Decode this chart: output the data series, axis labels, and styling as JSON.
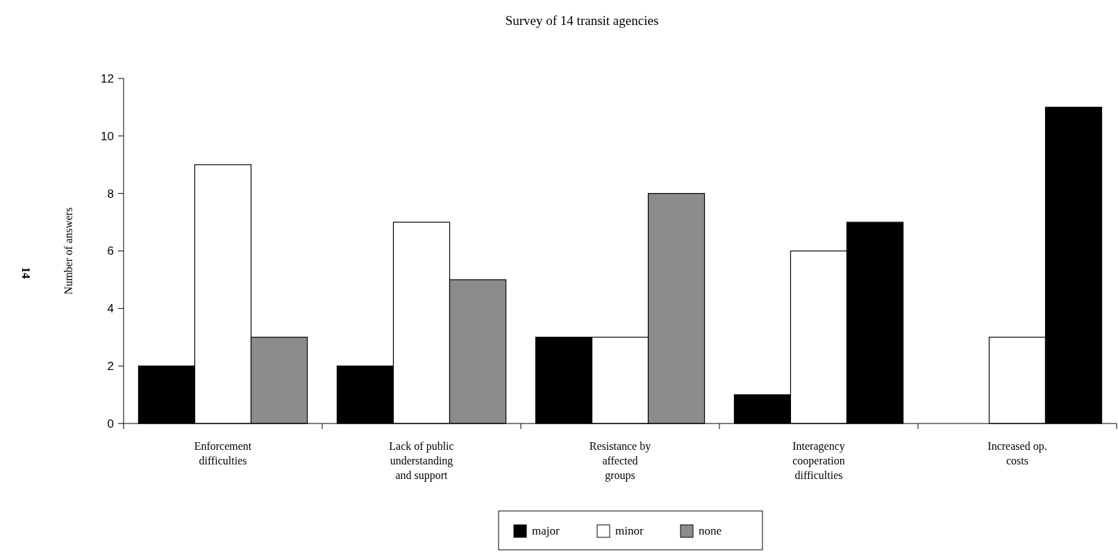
{
  "chart_data": {
    "type": "bar",
    "title": "Survey of 14 transit agencies",
    "ylabel": "Number of answers",
    "categories": [
      "Enforcement\ndifficulties",
      "Lack of public\nunderstanding\nand support",
      "Resistance by\naffected\ngroups",
      "Interagency\ncooperation\ndifficulties",
      "Increased op.\ncosts"
    ],
    "series": [
      {
        "name": "major",
        "color": "#000000",
        "values": [
          2,
          2,
          3,
          1,
          0
        ]
      },
      {
        "name": "minor",
        "color": "#ffffff",
        "values": [
          9,
          7,
          3,
          6,
          3
        ]
      },
      {
        "name": "none",
        "color": "#8c8c8c",
        "colors": [
          "#8c8c8c",
          "#8c8c8c",
          "#8c8c8c",
          "#000000",
          "#000000"
        ],
        "values": [
          3,
          5,
          8,
          7,
          11
        ]
      }
    ],
    "ylim": [
      0,
      12
    ],
    "yticks": [
      0,
      2,
      4,
      6,
      8,
      10,
      12
    ],
    "grid": false,
    "legend": "bottom",
    "annotations": [
      "14"
    ]
  }
}
